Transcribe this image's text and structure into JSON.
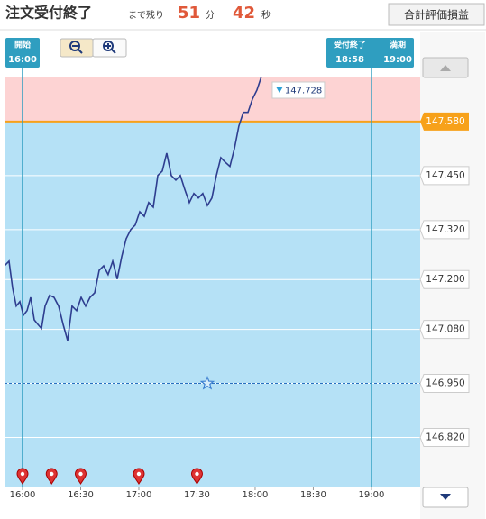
{
  "header": {
    "title": "注文受付終了",
    "remaining_label": "まで残り",
    "minutes": 51,
    "minutes_unit": "分",
    "seconds": 42,
    "seconds_unit": "秒",
    "button": "合計評価損益"
  },
  "chart_data": {
    "type": "line",
    "x": [
      15.845,
      15.884,
      15.915,
      15.946,
      15.977,
      16.008,
      16.039,
      16.07,
      16.101,
      16.132,
      16.163,
      16.194,
      16.233,
      16.271,
      16.31,
      16.349,
      16.388,
      16.426,
      16.465,
      16.504,
      16.543,
      16.581,
      16.62,
      16.659,
      16.698,
      16.736,
      16.775,
      16.814,
      16.853,
      16.891,
      16.93,
      16.969,
      17.008,
      17.047,
      17.085,
      17.124,
      17.163,
      17.202,
      17.24,
      17.279,
      17.318,
      17.357,
      17.395,
      17.434,
      17.473,
      17.512,
      17.55,
      17.589,
      17.628,
      17.667,
      17.705,
      17.744,
      17.783,
      17.822,
      17.86,
      17.899,
      17.938,
      17.977,
      18.016,
      18.054
    ],
    "values": [
      147.233,
      147.244,
      147.179,
      147.136,
      147.147,
      147.114,
      147.125,
      147.157,
      147.103,
      147.092,
      147.082,
      147.136,
      147.162,
      147.157,
      147.136,
      147.092,
      147.053,
      147.136,
      147.125,
      147.157,
      147.136,
      147.157,
      147.168,
      147.222,
      147.233,
      147.212,
      147.244,
      147.201,
      147.255,
      147.298,
      147.32,
      147.331,
      147.363,
      147.352,
      147.385,
      147.374,
      147.45,
      147.461,
      147.504,
      147.45,
      147.439,
      147.45,
      147.417,
      147.385,
      147.407,
      147.396,
      147.407,
      147.378,
      147.396,
      147.45,
      147.493,
      147.482,
      147.472,
      147.515,
      147.569,
      147.602,
      147.602,
      147.634,
      147.656,
      147.688
    ],
    "color": "#2e3d8f",
    "xlim": [
      15.845,
      19.419
    ],
    "ylim": [
      146.702,
      147.688
    ],
    "xticks": [
      {
        "value": 16,
        "label": "16:00"
      },
      {
        "value": 16.5,
        "label": "16:30"
      },
      {
        "value": 17,
        "label": "17:00"
      },
      {
        "value": 17.5,
        "label": "17:30"
      },
      {
        "value": 18,
        "label": "18:00"
      },
      {
        "value": 18.5,
        "label": "18:30"
      },
      {
        "value": 19,
        "label": "19:00"
      }
    ],
    "yticks": [
      {
        "value": 147.45,
        "label": "147.450"
      },
      {
        "value": 147.32,
        "label": "147.320"
      },
      {
        "value": 147.2,
        "label": "147.200"
      },
      {
        "value": 147.08,
        "label": "147.080"
      },
      {
        "value": 146.95,
        "label": "146.950"
      },
      {
        "value": 146.82,
        "label": "146.820"
      }
    ],
    "grid": true,
    "target": {
      "value": 147.58,
      "label": "147.580",
      "color": "#f7a11a"
    },
    "current_price": {
      "value": 147.728,
      "label": "147.728"
    },
    "entry": {
      "x": 17.589,
      "y": 146.95
    },
    "events_x": [
      16,
      16.25,
      16.5,
      17,
      17.5
    ],
    "markers": [
      {
        "label": "開始",
        "time": "16:00",
        "x": 16
      },
      {
        "label": "受付終了",
        "time": "18:58",
        "x": 18.967
      },
      {
        "label": "満期",
        "time": "19:00",
        "x": 19
      }
    ]
  }
}
